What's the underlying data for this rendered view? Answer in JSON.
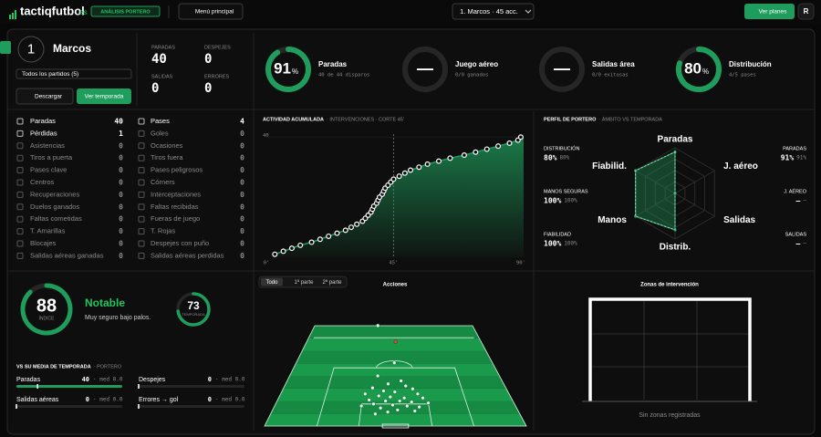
{
  "header": {
    "brand": "tactiqfutbol",
    "tld": ".es",
    "badge": "ANÁLISIS PORTERO",
    "menu": "Menú principal",
    "selector": "1. Marcos · 45 acc.",
    "plans": "Ver planes",
    "avatar": "R"
  },
  "player": {
    "number": "1",
    "name": "Marcos",
    "filter": "Todos los partidos (5)",
    "download": "Descargar",
    "season": "Ver temporada"
  },
  "summary": [
    {
      "label": "PARADAS",
      "value": "40"
    },
    {
      "label": "DESPEJES",
      "value": "0"
    },
    {
      "label": "SALIDAS",
      "value": "0"
    },
    {
      "label": "ERRORES",
      "value": "0"
    }
  ],
  "gauges": [
    {
      "title": "Paradas",
      "value": 91,
      "unit": "%",
      "detail": "40 de 44 disparos"
    },
    {
      "title": "Juego aéreo",
      "value": null,
      "label": "—",
      "detail": "0/0 ganados"
    },
    {
      "title": "Salidas área",
      "value": null,
      "label": "—",
      "detail": "0/0 exitosas"
    },
    {
      "title": "Distribución",
      "value": 80,
      "unit": "%",
      "detail": "4/5 pases"
    }
  ],
  "stats": {
    "left": [
      {
        "label": "Paradas",
        "value": "40"
      },
      {
        "label": "Pérdidas",
        "value": "1"
      },
      {
        "label": "Asistencias",
        "value": "0"
      },
      {
        "label": "Tiros a puerta",
        "value": "0"
      },
      {
        "label": "Pases clave",
        "value": "0"
      },
      {
        "label": "Centros",
        "value": "0"
      },
      {
        "label": "Recuperaciones",
        "value": "0"
      },
      {
        "label": "Duelos ganados",
        "value": "0"
      },
      {
        "label": "Faltas cometidas",
        "value": "0"
      },
      {
        "label": "T. Amarillas",
        "value": "0"
      },
      {
        "label": "Blocajes",
        "value": "0"
      },
      {
        "label": "Salidas aéreas ganadas",
        "value": "0"
      }
    ],
    "right": [
      {
        "label": "Pases",
        "value": "4"
      },
      {
        "label": "Goles",
        "value": "0"
      },
      {
        "label": "Ocasiones",
        "value": "0"
      },
      {
        "label": "Tiros fuera",
        "value": "0"
      },
      {
        "label": "Pases peligrosos",
        "value": "0"
      },
      {
        "label": "Córners",
        "value": "0"
      },
      {
        "label": "Interceptaciones",
        "value": "0"
      },
      {
        "label": "Faltas recibidas",
        "value": "0"
      },
      {
        "label": "Fueras de juego",
        "value": "0"
      },
      {
        "label": "T. Rojas",
        "value": "0"
      },
      {
        "label": "Despejes con puño",
        "value": "0"
      },
      {
        "label": "Salidas aéreas perdidas",
        "value": "0"
      }
    ]
  },
  "chart_data": [
    {
      "type": "line",
      "title": "ACTIVIDAD ACUMULADA",
      "subtitle": "· INTERVENCIONES · CORTE 45'",
      "x": [
        3,
        6,
        9,
        12,
        16,
        19,
        22,
        25,
        28,
        30,
        32,
        34,
        35,
        36,
        37,
        37.5,
        38,
        39,
        39.5,
        40,
        41,
        41.5,
        42,
        43,
        44,
        45,
        47,
        49,
        51,
        54,
        57,
        61,
        65,
        70,
        74,
        78,
        82,
        86,
        89,
        90
      ],
      "series": [
        {
          "color": "#ffffff",
          "values": [
            1,
            2,
            3,
            4,
            5,
            6,
            7,
            8,
            9,
            10,
            11,
            12,
            13,
            14,
            15,
            16,
            17,
            18,
            19,
            20,
            21,
            22,
            23,
            24,
            25,
            26,
            27,
            28,
            29,
            30,
            31,
            32,
            33,
            34,
            35,
            36,
            37,
            38,
            39,
            40
          ]
        }
      ],
      "xlim": [
        0,
        91
      ],
      "ylim": [
        0,
        41
      ],
      "yticks": [
        40
      ],
      "xticks": [
        {
          "value": 0,
          "label": "0'"
        },
        {
          "value": 45,
          "label": "45'"
        },
        {
          "value": 90,
          "label": "90'"
        }
      ]
    },
    {
      "type": "radar",
      "title": "PERFIL DE PORTERO",
      "subtitle": "· ÁMBITO VS TEMPORADA",
      "categories": [
        "Paradas",
        "J. aéreo",
        "Salidas",
        "Distrib.",
        "Manos",
        "Fiabilid."
      ],
      "rlim": [
        0,
        100
      ],
      "series": [
        {
          "color": "#22a763",
          "values": [
            91,
            0,
            0,
            80,
            100,
            100
          ]
        },
        {
          "color": "#d9d9d9",
          "values": [
            91,
            0,
            0,
            80,
            100,
            100
          ]
        }
      ]
    },
    {
      "type": "scatter",
      "title": "Acciones",
      "xlim": [
        0,
        100
      ],
      "ylim": [
        0,
        100
      ],
      "series": [
        {
          "color": "#dff7e8",
          "x": [
            40,
            50,
            42,
            53,
            47,
            55,
            40,
            58,
            45,
            50,
            37,
            60,
            43,
            48,
            54,
            62,
            39,
            46,
            52,
            57,
            41,
            49,
            55,
            44,
            60,
            36,
            51,
            47,
            64,
            58,
            42
          ],
          "values": [
            0,
            37,
            50,
            55,
            58,
            60,
            62,
            63,
            65,
            66,
            68,
            68,
            70,
            71,
            72,
            72,
            74,
            75,
            75,
            76,
            78,
            79,
            80,
            82,
            81,
            80,
            84,
            86,
            77,
            85,
            88
          ]
        },
        {
          "color": "#e0433a",
          "x": [
            51
          ],
          "values": [
            16
          ]
        }
      ]
    }
  ],
  "index": {
    "value": 88,
    "label": "ÍNDICE",
    "rating": "Notable",
    "description": "Muy seguro bajo palos.",
    "season_value": 73,
    "season_label": "TEMPORADA"
  },
  "radar_side": {
    "left": [
      {
        "label": "DISTRIBUCIÓN",
        "value": "80%",
        "season": "80%"
      },
      {
        "label": "MANOS SEGURAS",
        "value": "100%",
        "season": "100%"
      },
      {
        "label": "FIABILIDAD",
        "value": "100%",
        "season": "100%"
      }
    ],
    "right": [
      {
        "label": "PARADAS",
        "value": "91%",
        "season": "91%"
      },
      {
        "label": "J. AÉREO",
        "value": "—",
        "season": "—"
      },
      {
        "label": "SALIDAS",
        "value": "—",
        "season": "—"
      }
    ]
  },
  "comparison": {
    "title": "VS SU MEDIA DE TEMPORADA",
    "subtitle": "· PORTERO",
    "rows": [
      {
        "label": "Paradas",
        "value": 40,
        "average": {
          "value": 8,
          "label": "· med 8.0"
        }
      },
      {
        "label": "Despejes",
        "value": 0,
        "average": {
          "value": 0,
          "label": "· med 0.0"
        }
      },
      {
        "label": "Salidas aéreas",
        "value": 0,
        "average": {
          "value": 0,
          "label": "· med 0.0"
        }
      },
      {
        "label": "Errores → gol",
        "value": 0,
        "average": {
          "value": 0,
          "label": "· med 0.0"
        }
      }
    ]
  },
  "tabs": [
    "Todo",
    "1ª parte",
    "2ª parte"
  ],
  "zones": {
    "title": "Zonas de intervención",
    "empty": "Sin zonas registradas"
  }
}
